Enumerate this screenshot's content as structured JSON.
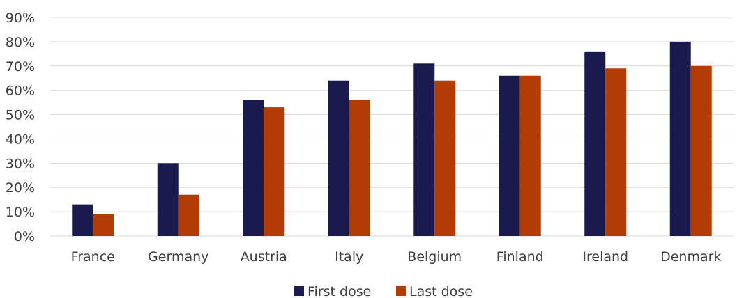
{
  "chart_data": {
    "type": "bar",
    "title": "",
    "xlabel": "",
    "ylabel": "",
    "categories": [
      "France",
      "Germany",
      "Austria",
      "Italy",
      "Belgium",
      "Finland",
      "Ireland",
      "Denmark"
    ],
    "series": [
      {
        "name": "First dose",
        "color": "#1a1a4e",
        "values": [
          13,
          30,
          56,
          64,
          71,
          66,
          76,
          80
        ]
      },
      {
        "name": "Last dose",
        "color": "#b33c05",
        "values": [
          9,
          17,
          53,
          56,
          64,
          66,
          69,
          70
        ]
      }
    ],
    "ylim": [
      0,
      90
    ],
    "yticks": [
      0,
      10,
      20,
      30,
      40,
      50,
      60,
      70,
      80,
      90
    ],
    "ytick_labels": [
      "0%",
      "10%",
      "20%",
      "30%",
      "40%",
      "50%",
      "60%",
      "70%",
      "80%",
      "90%"
    ],
    "grid": true,
    "legend_position": "bottom-center"
  }
}
